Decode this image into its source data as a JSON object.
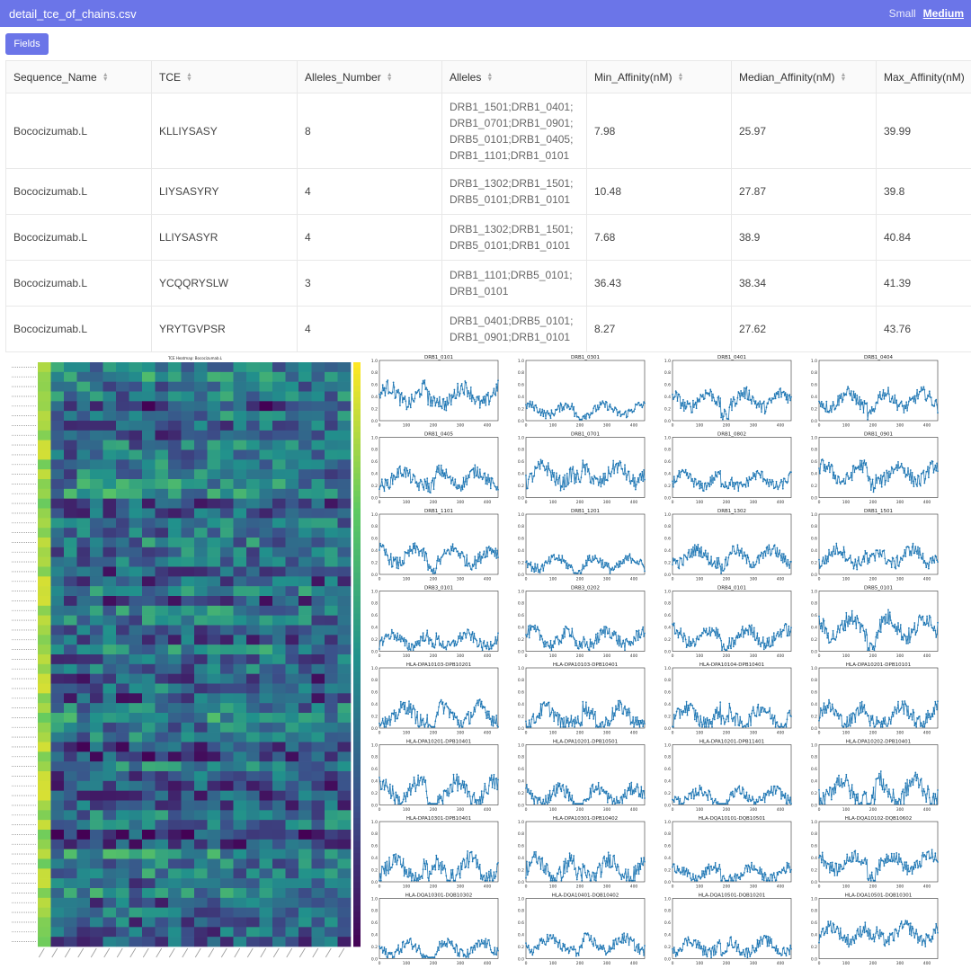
{
  "header": {
    "title": "detail_tce_of_chains.csv",
    "size_small": "Small",
    "size_medium": "Medium"
  },
  "toolbar": {
    "fields_label": "Fields"
  },
  "table": {
    "columns": [
      "Sequence_Name",
      "TCE",
      "Alleles_Number",
      "Alleles",
      "Min_Affinity(nM)",
      "Median_Affinity(nM)",
      "Max_Affinity(nM)"
    ],
    "rows": [
      [
        "Bococizumab.L",
        "KLLIYSASY",
        "8",
        "DRB1_1501;DRB1_0401;DRB1_0701;DRB1_0901;DRB5_0101;DRB1_0405;DRB1_1101;DRB1_0101",
        "7.98",
        "25.97",
        "39.99"
      ],
      [
        "Bococizumab.L",
        "LIYSASYRY",
        "4",
        "DRB1_1302;DRB1_1501;DRB5_0101;DRB1_0101",
        "10.48",
        "27.87",
        "39.8"
      ],
      [
        "Bococizumab.L",
        "LLIYSASYR",
        "4",
        "DRB1_1302;DRB1_1501;DRB5_0101;DRB1_0101",
        "7.68",
        "38.9",
        "40.84"
      ],
      [
        "Bococizumab.L",
        "YCQQRYSLW",
        "3",
        "DRB1_1101;DRB5_0101;DRB1_0101",
        "36.43",
        "38.34",
        "41.39"
      ],
      [
        "Bococizumab.L",
        "YRYTGVPSR",
        "4",
        "DRB1_0401;DRB5_0101;DRB1_0901;DRB1_0101",
        "8.27",
        "27.62",
        "43.76"
      ]
    ]
  },
  "heatmap": {
    "title": "TCE Heatmap: Bococizumab.L",
    "rows": 60,
    "cols": 24
  },
  "chart_data": {
    "type": "line",
    "x_range": [
      0,
      440
    ],
    "x_ticks": [
      0,
      100,
      200,
      300,
      400
    ],
    "y_ticks": [
      0.0,
      0.2,
      0.4,
      0.6,
      0.8,
      1.0
    ],
    "panels": [
      {
        "title": "DRB1_0101",
        "base": 0.42,
        "amp": 0.14
      },
      {
        "title": "DRB1_0301",
        "base": 0.18,
        "amp": 0.08
      },
      {
        "title": "DRB1_0401",
        "base": 0.34,
        "amp": 0.12
      },
      {
        "title": "DRB1_0404",
        "base": 0.34,
        "amp": 0.12
      },
      {
        "title": "DRB1_0405",
        "base": 0.32,
        "amp": 0.12
      },
      {
        "title": "DRB1_0701",
        "base": 0.38,
        "amp": 0.14
      },
      {
        "title": "DRB1_0802",
        "base": 0.28,
        "amp": 0.1
      },
      {
        "title": "DRB1_0901",
        "base": 0.4,
        "amp": 0.13
      },
      {
        "title": "DRB1_1101",
        "base": 0.3,
        "amp": 0.12
      },
      {
        "title": "DRB1_1201",
        "base": 0.18,
        "amp": 0.09
      },
      {
        "title": "DRB1_1302",
        "base": 0.3,
        "amp": 0.11
      },
      {
        "title": "DRB1_1501",
        "base": 0.3,
        "amp": 0.12
      },
      {
        "title": "DRB3_0101",
        "base": 0.18,
        "amp": 0.1
      },
      {
        "title": "DRB3_0202",
        "base": 0.22,
        "amp": 0.12
      },
      {
        "title": "DRB4_0101",
        "base": 0.24,
        "amp": 0.12
      },
      {
        "title": "DRB5_0101",
        "base": 0.4,
        "amp": 0.16
      },
      {
        "title": "HLA-DPA10103-DPB10201",
        "base": 0.22,
        "amp": 0.14
      },
      {
        "title": "HLA-DPA10103-DPB10401",
        "base": 0.2,
        "amp": 0.14
      },
      {
        "title": "HLA-DPA10104-DPB10401",
        "base": 0.2,
        "amp": 0.14
      },
      {
        "title": "HLA-DPA10201-DPB10101",
        "base": 0.22,
        "amp": 0.14
      },
      {
        "title": "HLA-DPA10201-DPB10401",
        "base": 0.22,
        "amp": 0.16
      },
      {
        "title": "HLA-DPA10201-DPB10501",
        "base": 0.16,
        "amp": 0.12
      },
      {
        "title": "HLA-DPA10201-DPB11401",
        "base": 0.14,
        "amp": 0.1
      },
      {
        "title": "HLA-DPA10202-DPB10401",
        "base": 0.24,
        "amp": 0.18
      },
      {
        "title": "HLA-DPA10301-DPB10401",
        "base": 0.22,
        "amp": 0.16
      },
      {
        "title": "HLA-DPA10301-DPB10402",
        "base": 0.22,
        "amp": 0.16
      },
      {
        "title": "HLA-DQA10101-DQB10501",
        "base": 0.14,
        "amp": 0.1
      },
      {
        "title": "HLA-DQA10102-DQB10602",
        "base": 0.32,
        "amp": 0.12
      },
      {
        "title": "HLA-DQA10301-DQB10302",
        "base": 0.16,
        "amp": 0.1
      },
      {
        "title": "HLA-DQA10401-DQB10402",
        "base": 0.24,
        "amp": 0.1
      },
      {
        "title": "HLA-DQA10501-DQB10201",
        "base": 0.2,
        "amp": 0.1
      },
      {
        "title": "HLA-DQA10501-DQB10301",
        "base": 0.42,
        "amp": 0.12
      }
    ]
  }
}
